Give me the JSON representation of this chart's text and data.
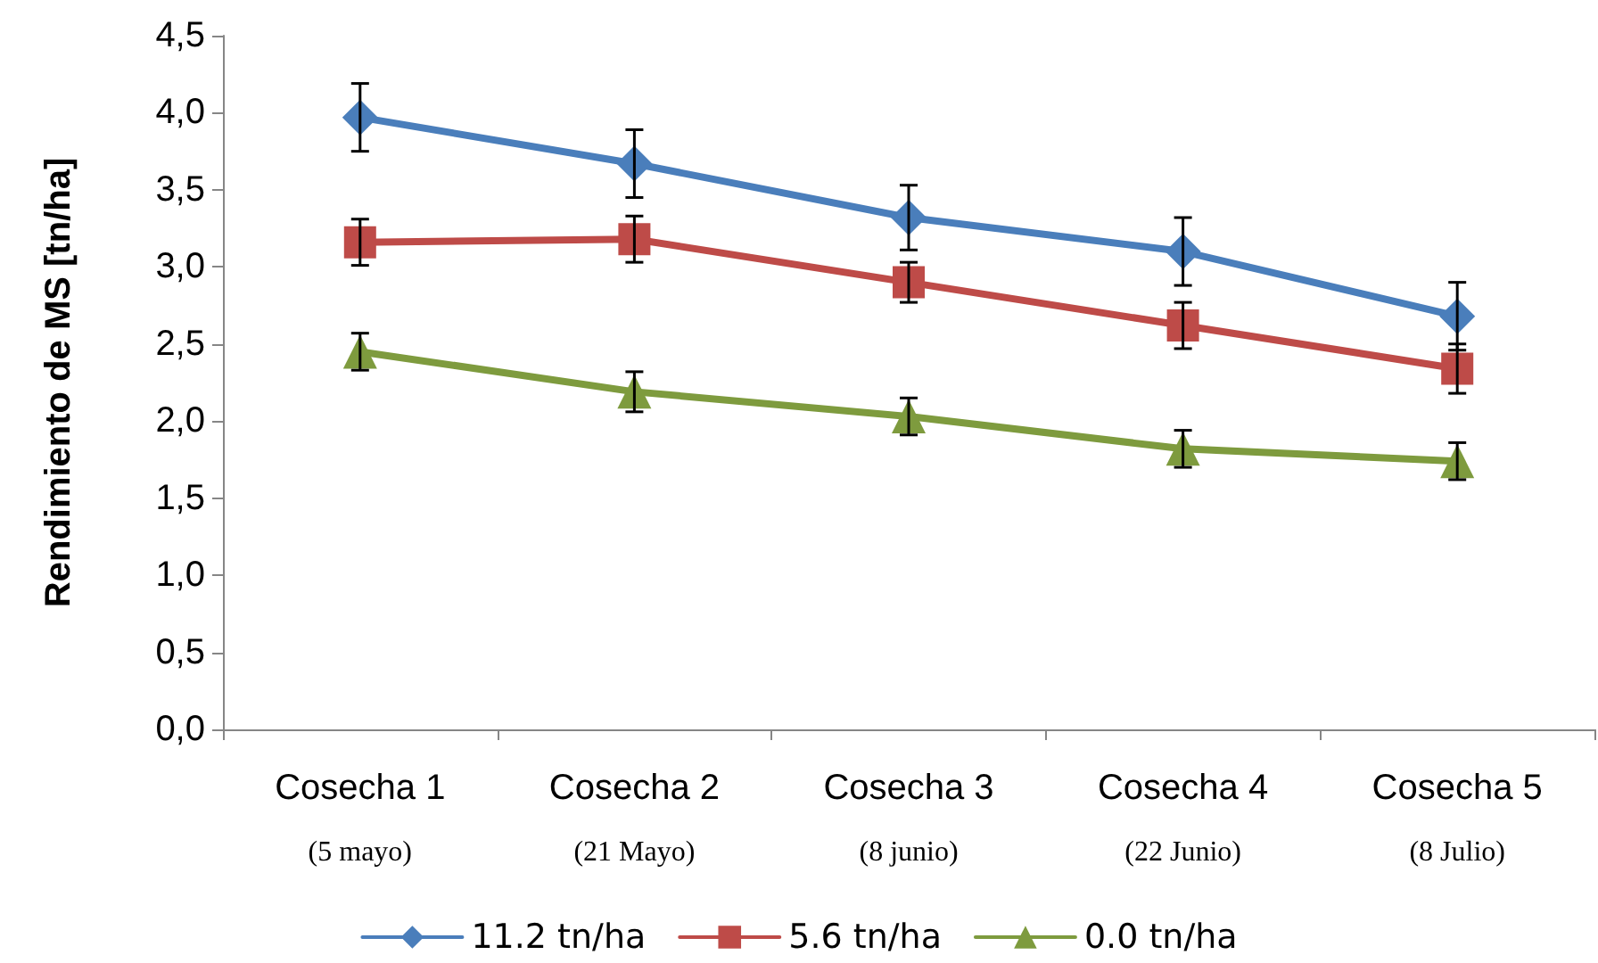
{
  "chart_data": {
    "type": "line",
    "ylabel": "Rendimiento de MS [tn/ha]",
    "categories": [
      "Cosecha 1\n(5 mayo)",
      "Cosecha 2\n(21 Mayo)",
      "Cosecha 3\n(8 junio)",
      "Cosecha 4\n(22 Junio)",
      "Cosecha 5\n(8 Julio)"
    ],
    "series": [
      {
        "name": "11.2 tn/ha",
        "color": "#4a7ebb",
        "marker": "diamond",
        "values": [
          3.97,
          3.67,
          3.32,
          3.1,
          2.68
        ],
        "errors": [
          0.22,
          0.22,
          0.21,
          0.22,
          0.22
        ]
      },
      {
        "name": "5.6 tn/ha",
        "color": "#be4b48",
        "marker": "square",
        "values": [
          3.16,
          3.18,
          2.9,
          2.62,
          2.34
        ],
        "errors": [
          0.15,
          0.15,
          0.13,
          0.15,
          0.16
        ]
      },
      {
        "name": "0.0 tn/ha",
        "color": "#7e9b3e",
        "marker": "triangle",
        "values": [
          2.45,
          2.19,
          2.03,
          1.82,
          1.74
        ],
        "errors": [
          0.12,
          0.13,
          0.12,
          0.12,
          0.12
        ]
      }
    ],
    "ylim": [
      0,
      4.5
    ],
    "yticks": [
      {
        "value": 0,
        "label": "0,0"
      },
      {
        "value": 0.5,
        "label": "0,5"
      },
      {
        "value": 1,
        "label": "1,0"
      },
      {
        "value": 1.5,
        "label": "1,5"
      },
      {
        "value": 2,
        "label": "2,0"
      },
      {
        "value": 2.5,
        "label": "2,5"
      },
      {
        "value": 3,
        "label": "3,0"
      },
      {
        "value": 3.5,
        "label": "3,5"
      },
      {
        "value": 4,
        "label": "4,0"
      },
      {
        "value": 4.5,
        "label": "4,5"
      }
    ],
    "grid": false,
    "legend": "bottom",
    "line_style": "solid"
  }
}
